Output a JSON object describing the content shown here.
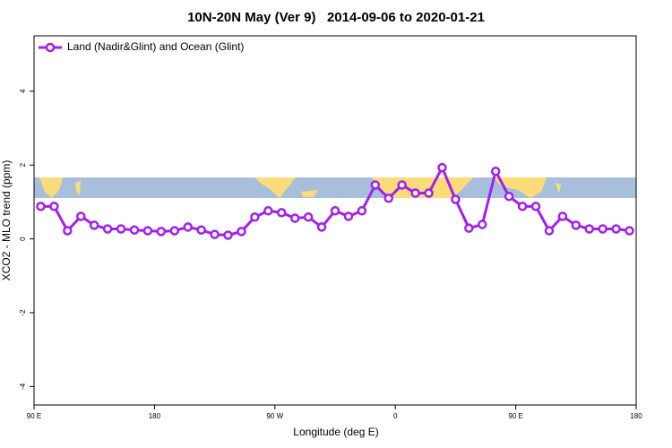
{
  "chart_data": {
    "type": "line",
    "title": "10N-20N May (Ver 9)   2014-09-06 to 2020-01-21",
    "x_label": "Longitude (deg E)",
    "y_label": "XCO2 - MLO trend (ppm)",
    "x": [
      95,
      105,
      115,
      125,
      135,
      145,
      155,
      165,
      175,
      185,
      195,
      205,
      215,
      225,
      235,
      245,
      255,
      265,
      275,
      285,
      295,
      305,
      315,
      325,
      335,
      345,
      355,
      365,
      375,
      385,
      395,
      405,
      415,
      425,
      435,
      445,
      455,
      465,
      475,
      485,
      495,
      505,
      515,
      525,
      535
    ],
    "series": [
      {
        "name": "Land (Nadir&Glint) and Ocean (Glint)",
        "color": "#a020f0",
        "values": [
          0.88,
          0.88,
          0.22,
          0.61,
          0.37,
          0.27,
          0.27,
          0.24,
          0.22,
          0.2,
          0.22,
          0.32,
          0.24,
          0.12,
          0.1,
          0.2,
          0.59,
          0.76,
          0.71,
          0.56,
          0.59,
          0.32,
          0.76,
          0.61,
          0.76,
          1.46,
          1.1,
          1.46,
          1.24,
          1.24,
          1.93,
          1.07,
          0.29,
          0.39,
          1.83,
          1.15,
          0.88,
          0.88,
          0.22,
          0.61,
          0.37,
          0.27,
          0.27,
          0.27,
          0.22
        ]
      }
    ],
    "xlim": [
      90,
      540
    ],
    "xticks": [
      {
        "value": 90,
        "label": "90 E"
      },
      180,
      {
        "value": 270,
        "label": "90 W"
      },
      {
        "value": 360,
        "label": "0"
      },
      {
        "value": 450,
        "label": "90 E"
      },
      {
        "value": 540,
        "label": "180"
      }
    ],
    "ylim": [
      -4.5,
      5.5
    ],
    "yticks": [
      -4,
      -2,
      0,
      2,
      4
    ],
    "legend": "top-left"
  }
}
